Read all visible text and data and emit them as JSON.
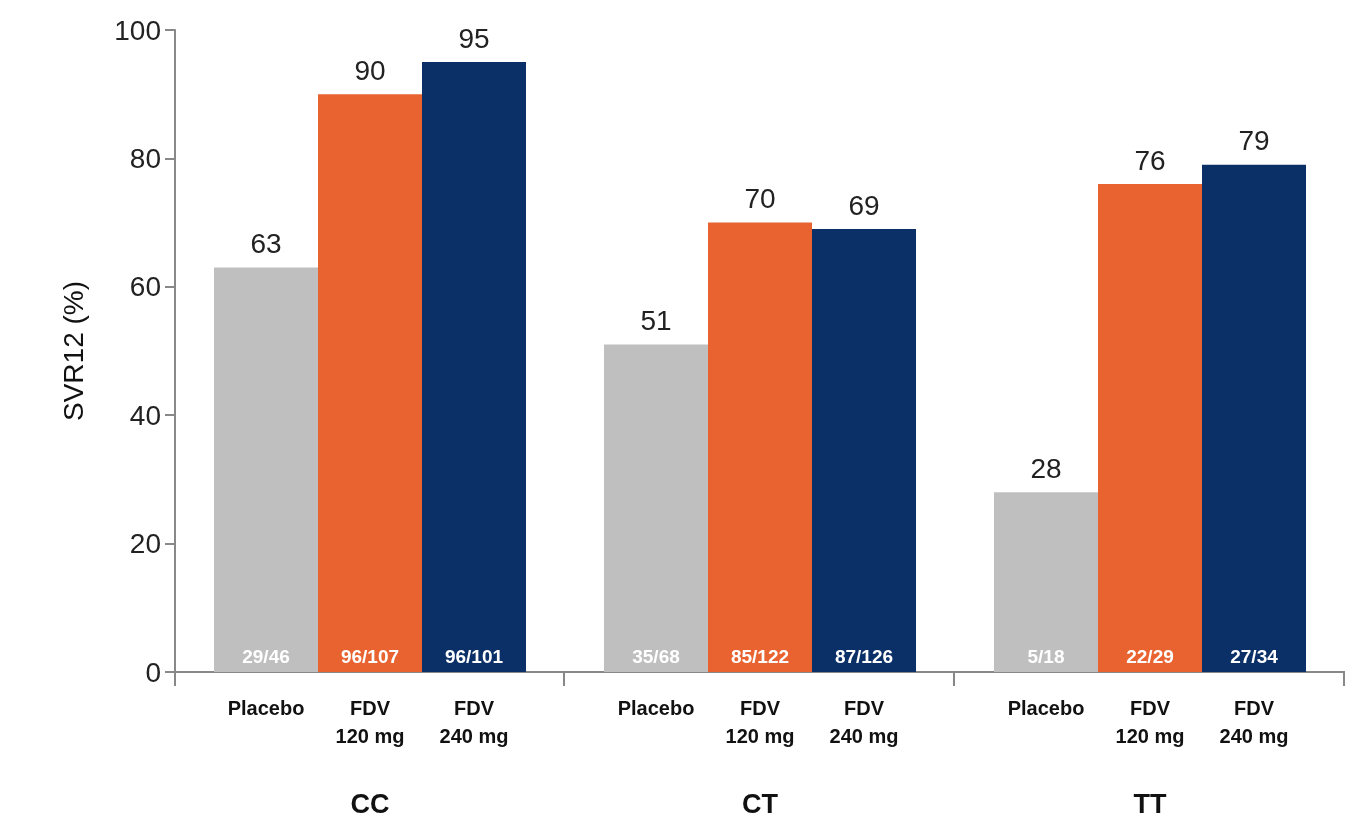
{
  "chart_data": [
    {
      "type": "bar",
      "xlabel": "CC",
      "ylabel": "SVR12 (%)",
      "categories": [
        "Placebo",
        "FDV\n120 mg",
        "FDV\n240 mg"
      ],
      "values": [
        63,
        90,
        95
      ],
      "colors": [
        "#bfbfbf",
        "#e96330",
        "#0b3068"
      ],
      "annotations": [
        "29/46",
        "96/107",
        "96/101"
      ],
      "ylim": [
        0,
        100
      ],
      "yticks": [
        0,
        20,
        40,
        60,
        80,
        100
      ],
      "data_labels": true,
      "grid": false
    },
    {
      "type": "bar",
      "xlabel": "CT",
      "categories": [
        "Placebo",
        "FDV\n120 mg",
        "FDV\n240 mg"
      ],
      "values": [
        51,
        70,
        69
      ],
      "colors": [
        "#bfbfbf",
        "#e96330",
        "#0b3068"
      ],
      "annotations": [
        "35/68",
        "85/122",
        "87/126"
      ],
      "ylim": [
        0,
        100
      ],
      "yticks": [
        0,
        20,
        40,
        60,
        80,
        100
      ],
      "data_labels": true,
      "grid": false,
      "tick_labels": "x"
    },
    {
      "type": "bar",
      "xlabel": "TT",
      "categories": [
        "Placebo",
        "FDV\n120 mg",
        "FDV\n240 mg"
      ],
      "values": [
        28,
        76,
        79
      ],
      "colors": [
        "#bfbfbf",
        "#e96330",
        "#0b3068"
      ],
      "annotations": [
        "5/18",
        "22/29",
        "27/34"
      ],
      "ylim": [
        0,
        100
      ],
      "yticks": [
        0,
        20,
        40,
        60,
        80,
        100
      ],
      "data_labels": true,
      "grid": false,
      "tick_labels": "x"
    }
  ]
}
